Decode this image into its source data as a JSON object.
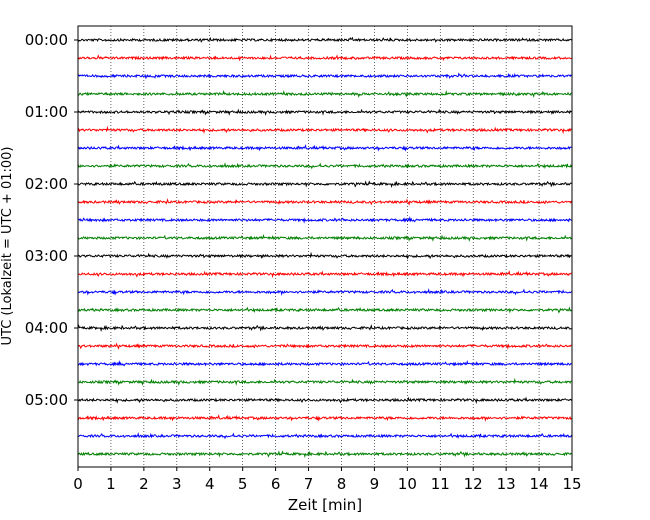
{
  "chart_data": {
    "type": "line",
    "title": "",
    "xlabel": "Zeit  [min]",
    "ylabel": "UTC (Lokalzeit = UTC + 01:00)",
    "xlim": [
      0,
      15
    ],
    "x_ticks": [
      "0",
      "1",
      "2",
      "3",
      "4",
      "5",
      "6",
      "7",
      "8",
      "9",
      "10",
      "11",
      "12",
      "13",
      "14",
      "15"
    ],
    "y_tick_labels": [
      "00:00",
      "01:00",
      "02:00",
      "03:00",
      "04:00",
      "05:00"
    ],
    "grid": "vertical dotted lines at each minute",
    "trace_count": 24,
    "trace_interval_min": 15,
    "trace_colors": [
      "#000000",
      "#ff0000",
      "#0000ff",
      "#008000"
    ],
    "series_description": "Seismogram helicorder: each row is a 15-minute trace of low-amplitude noise, rows stacked from 00:00 to 05:45 UTC, colors cycling black, red, blue, green"
  }
}
